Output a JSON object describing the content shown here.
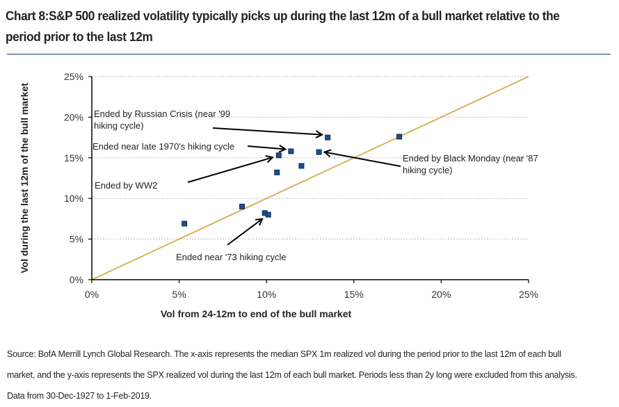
{
  "title": "Chart 8:S&P 500 realized volatility typically picks up during the last 12m of a bull market relative to the period prior to the last 12m",
  "source": "Source: BofA Merrill Lynch Global Research. The x-axis represents the median SPX 1m realized vol during the period prior to the last 12m of each bull market, and the y-axis represents the SPX realized vol during the last 12m of each bull market. Periods less than 2y long were excluded from this analysis. Data from 30-Dec-1927 to 1-Feb-2019.",
  "colors": {
    "marker": "#1f4e8c",
    "marker_edge": "#0d2a55",
    "diagonal": "#d4b45a",
    "gridline": "#bdbdbd",
    "axis": "#000000",
    "arrow": "#000000"
  },
  "chart_data": {
    "type": "scatter",
    "title": "Chart 8:S&P 500 realized volatility typically picks up during the last 12m of a bull market relative to the period prior to the last 12m",
    "xlabel": "Vol from 24-12m to end of the bull market",
    "ylabel": "Vol during the last 12m of the bull market",
    "xlim": [
      0,
      25
    ],
    "ylim": [
      0,
      25
    ],
    "x_ticks": [
      0,
      5,
      10,
      15,
      20,
      25
    ],
    "y_ticks": [
      0,
      5,
      10,
      15,
      20,
      25
    ],
    "x_tick_labels": [
      "0%",
      "5%",
      "10%",
      "15%",
      "20%",
      "25%"
    ],
    "y_tick_labels": [
      "0%",
      "5%",
      "10%",
      "15%",
      "20%",
      "25%"
    ],
    "grid": "horizontal dotted",
    "legend": "none",
    "series": [
      {
        "name": "Bull markets",
        "points": [
          {
            "x": 5.3,
            "y": 6.9
          },
          {
            "x": 8.6,
            "y": 9.0
          },
          {
            "x": 9.9,
            "y": 8.2
          },
          {
            "x": 10.1,
            "y": 8.0
          },
          {
            "x": 10.6,
            "y": 13.2
          },
          {
            "x": 10.7,
            "y": 15.3
          },
          {
            "x": 11.4,
            "y": 15.8
          },
          {
            "x": 12.0,
            "y": 14.0
          },
          {
            "x": 13.0,
            "y": 15.7
          },
          {
            "x": 13.5,
            "y": 17.5
          },
          {
            "x": 17.6,
            "y": 17.6
          }
        ]
      },
      {
        "name": "45-degree line",
        "type": "line",
        "points": [
          {
            "x": 0,
            "y": 0
          },
          {
            "x": 25,
            "y": 25
          }
        ]
      }
    ],
    "annotations": [
      {
        "lines": [
          "Ended by Russian Crisis (near '99",
          "hiking cycle)"
        ],
        "target": {
          "x": 13.5,
          "y": 17.5
        }
      },
      {
        "lines": [
          "Ended near late 1970's hiking cycle"
        ],
        "target": {
          "x": 11.4,
          "y": 15.8
        }
      },
      {
        "lines": [
          "Ended by WW2"
        ],
        "target": {
          "x": 10.7,
          "y": 15.3
        }
      },
      {
        "lines": [
          "Ended by Black Monday (near '87",
          "hiking cycle)"
        ],
        "target": {
          "x": 13.0,
          "y": 15.7
        }
      },
      {
        "lines": [
          "Ended near '73 hiking cycle"
        ],
        "target": {
          "x": 10.0,
          "y": 8.0
        }
      }
    ]
  }
}
